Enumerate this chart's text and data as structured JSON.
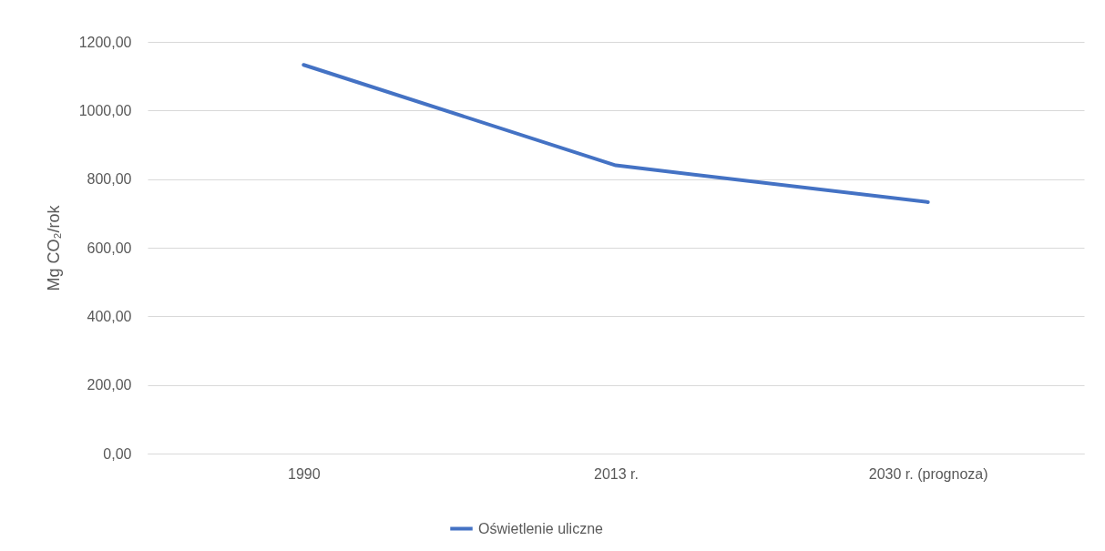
{
  "chart_data": {
    "type": "line",
    "ylabel": "Mg CO₂/rok",
    "categories": [
      "1990",
      "2013 r.",
      "2030 r. (prognoza)"
    ],
    "series": [
      {
        "name": "Oświetlenie uliczne",
        "color": "#4472c4",
        "values": [
          1133,
          840,
          733
        ]
      }
    ],
    "ylim": [
      0,
      1200
    ],
    "yticks": [
      {
        "value": 0,
        "label": "0,00"
      },
      {
        "value": 200,
        "label": "200,00"
      },
      {
        "value": 400,
        "label": "400,00"
      },
      {
        "value": 600,
        "label": "600,00"
      },
      {
        "value": 800,
        "label": "800,00"
      },
      {
        "value": 1000,
        "label": "1000,00"
      },
      {
        "value": 1200,
        "label": "1200,00"
      }
    ],
    "grid": "y",
    "legend": "bottom",
    "marker": "none",
    "line_style": "solid"
  }
}
